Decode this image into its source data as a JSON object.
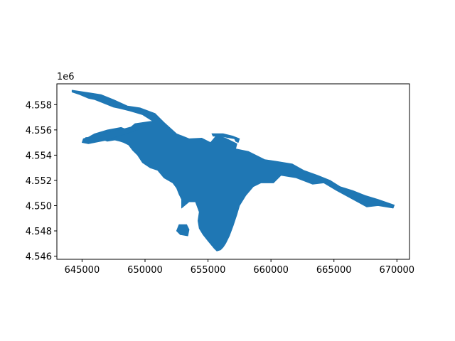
{
  "figure": {
    "background": "#ffffff",
    "fill_color": "#1f77b4",
    "axis_color": "#000000"
  },
  "chart_data": {
    "type": "map",
    "title": "",
    "xlabel": "",
    "ylabel": "",
    "xlim": [
      643000,
      671000
    ],
    "ylim": [
      4545750,
      4559650
    ],
    "y_offset_label": "1e6",
    "xticks": [
      645000,
      650000,
      655000,
      660000,
      665000,
      670000
    ],
    "xtick_labels": [
      "645000",
      "650000",
      "655000",
      "660000",
      "665000",
      "670000"
    ],
    "yticks": [
      4546000,
      4548000,
      4550000,
      4552000,
      4554000,
      4556000,
      4558000
    ],
    "ytick_labels": [
      "4.546",
      "4.548",
      "4.550",
      "4.552",
      "4.554",
      "4.556",
      "4.558"
    ],
    "polygons": [
      {
        "name": "main-region",
        "coords": [
          [
            644200,
            4559150
          ],
          [
            645500,
            4558950
          ],
          [
            646500,
            4558800
          ],
          [
            647500,
            4558400
          ],
          [
            648600,
            4557900
          ],
          [
            649600,
            4557750
          ],
          [
            650800,
            4557300
          ],
          [
            651500,
            4556600
          ],
          [
            652500,
            4555700
          ],
          [
            653500,
            4555300
          ],
          [
            654500,
            4555350
          ],
          [
            655200,
            4555000
          ],
          [
            655700,
            4555600
          ],
          [
            656500,
            4555300
          ],
          [
            657300,
            4554900
          ],
          [
            657200,
            4554500
          ],
          [
            658200,
            4554300
          ],
          [
            659500,
            4553650
          ],
          [
            660500,
            4553500
          ],
          [
            661700,
            4553300
          ],
          [
            662600,
            4552800
          ],
          [
            663700,
            4552400
          ],
          [
            664700,
            4552000
          ],
          [
            665500,
            4551500
          ],
          [
            666500,
            4551200
          ],
          [
            667500,
            4550800
          ],
          [
            668500,
            4550500
          ],
          [
            669800,
            4550050
          ],
          [
            669700,
            4549800
          ],
          [
            668500,
            4550000
          ],
          [
            667600,
            4549900
          ],
          [
            666500,
            4550500
          ],
          [
            665200,
            4551200
          ],
          [
            664200,
            4551800
          ],
          [
            663300,
            4551700
          ],
          [
            662000,
            4552200
          ],
          [
            660800,
            4552400
          ],
          [
            660200,
            4551800
          ],
          [
            659200,
            4551800
          ],
          [
            658600,
            4551500
          ],
          [
            658000,
            4550800
          ],
          [
            657500,
            4550000
          ],
          [
            657300,
            4549300
          ],
          [
            657000,
            4548400
          ],
          [
            656700,
            4547600
          ],
          [
            656400,
            4547000
          ],
          [
            656200,
            4546700
          ],
          [
            656000,
            4546500
          ],
          [
            655700,
            4546400
          ],
          [
            655500,
            4546600
          ],
          [
            655000,
            4547200
          ],
          [
            654600,
            4547700
          ],
          [
            654300,
            4548200
          ],
          [
            654200,
            4548800
          ],
          [
            654300,
            4549500
          ],
          [
            654000,
            4550300
          ],
          [
            653500,
            4550300
          ],
          [
            652900,
            4549800
          ],
          [
            652900,
            4550500
          ],
          [
            652700,
            4550900
          ],
          [
            652500,
            4551400
          ],
          [
            652200,
            4551800
          ],
          [
            651500,
            4552200
          ],
          [
            651000,
            4552800
          ],
          [
            650400,
            4553000
          ],
          [
            649800,
            4553400
          ],
          [
            649400,
            4554000
          ],
          [
            649000,
            4554400
          ],
          [
            648700,
            4554800
          ],
          [
            648300,
            4555000
          ],
          [
            648000,
            4555100
          ],
          [
            647600,
            4555200
          ],
          [
            647000,
            4555100
          ],
          [
            646200,
            4555400
          ],
          [
            645300,
            4555400
          ],
          [
            645100,
            4555200
          ],
          [
            646000,
            4555700
          ],
          [
            647000,
            4556000
          ],
          [
            648100,
            4556200
          ],
          [
            648600,
            4556000
          ],
          [
            649200,
            4556500
          ],
          [
            650600,
            4556700
          ],
          [
            649800,
            4557200
          ],
          [
            648800,
            4557500
          ],
          [
            648000,
            4557700
          ],
          [
            647500,
            4557800
          ],
          [
            646500,
            4558200
          ],
          [
            646000,
            4558400
          ],
          [
            645500,
            4558500
          ],
          [
            644800,
            4558800
          ],
          [
            644200,
            4559000
          ]
        ]
      },
      {
        "name": "northern-finger",
        "coords": [
          [
            655300,
            4555700
          ],
          [
            656200,
            4555700
          ],
          [
            657000,
            4555500
          ],
          [
            657500,
            4555300
          ],
          [
            657400,
            4555000
          ],
          [
            657200,
            4555100
          ],
          [
            657100,
            4555300
          ],
          [
            656500,
            4555400
          ],
          [
            656000,
            4555500
          ],
          [
            655400,
            4555500
          ]
        ]
      },
      {
        "name": "southwest-islet",
        "coords": [
          [
            652700,
            4548500
          ],
          [
            653300,
            4548500
          ],
          [
            653500,
            4548100
          ],
          [
            653400,
            4547600
          ],
          [
            652800,
            4547700
          ],
          [
            652500,
            4548000
          ]
        ]
      },
      {
        "name": "west-strip",
        "coords": [
          [
            645100,
            4555300
          ],
          [
            646500,
            4555700
          ],
          [
            648000,
            4556000
          ],
          [
            649500,
            4556400
          ],
          [
            650300,
            4556500
          ],
          [
            650000,
            4556200
          ],
          [
            648500,
            4555700
          ],
          [
            647000,
            4555200
          ],
          [
            645500,
            4554900
          ],
          [
            645000,
            4555000
          ]
        ]
      }
    ]
  }
}
